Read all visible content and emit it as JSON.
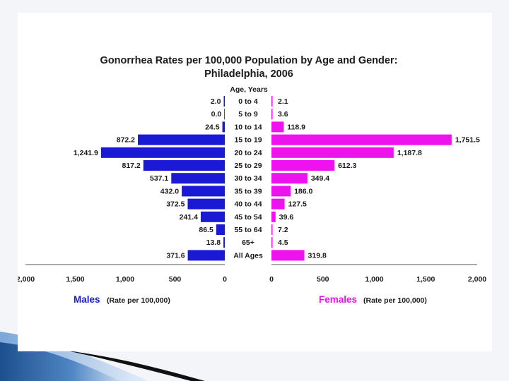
{
  "chart_data": {
    "type": "bar",
    "orientation": "horizontal-butterfly",
    "title": "Gonorrhea Rates per 100,000 Population by Age and Gender:",
    "subtitle": "Philadelphia, 2006",
    "category_header": "Age, Years",
    "categories": [
      "0 to 4",
      "5 to 9",
      "10 to 14",
      "15 to 19",
      "20 to 24",
      "25 to 29",
      "30 to 34",
      "35 to 39",
      "40 to 44",
      "45 to 54",
      "55 to 64",
      "65+",
      "All Ages"
    ],
    "series": [
      {
        "name": "Males",
        "side": "left",
        "color": "#1a1ad6",
        "values": [
          2.0,
          0.0,
          24.5,
          872.2,
          1241.9,
          817.2,
          537.1,
          432.0,
          372.5,
          241.4,
          86.5,
          13.8,
          371.6
        ],
        "labels": [
          "2.0",
          "0.0",
          "24.5",
          "872.2",
          "1,241.9",
          "817.2",
          "537.1",
          "432.0",
          "372.5",
          "241.4",
          "86.5",
          "13.8",
          "371.6"
        ]
      },
      {
        "name": "Females",
        "side": "right",
        "color": "#ee12ee",
        "values": [
          2.1,
          3.6,
          118.9,
          1751.5,
          1187.8,
          612.3,
          349.4,
          186.0,
          127.5,
          39.6,
          7.2,
          4.5,
          319.8
        ],
        "labels": [
          "2.1",
          "3.6",
          "118.9",
          "1,751.5",
          "1,187.8",
          "612.3",
          "349.4",
          "186.0",
          "127.5",
          "39.6",
          "7.2",
          "4.5",
          "319.8"
        ]
      }
    ],
    "xlim": [
      0,
      2000
    ],
    "x_ticks": [
      "2,000",
      "1,500",
      "1,000",
      "500",
      "0"
    ],
    "x_ticks_right": [
      "0",
      "500",
      "1,000",
      "1,500",
      "2,000"
    ],
    "legend": {
      "males": "Males",
      "females": "Females",
      "unit": "(Rate per 100,000)"
    }
  }
}
